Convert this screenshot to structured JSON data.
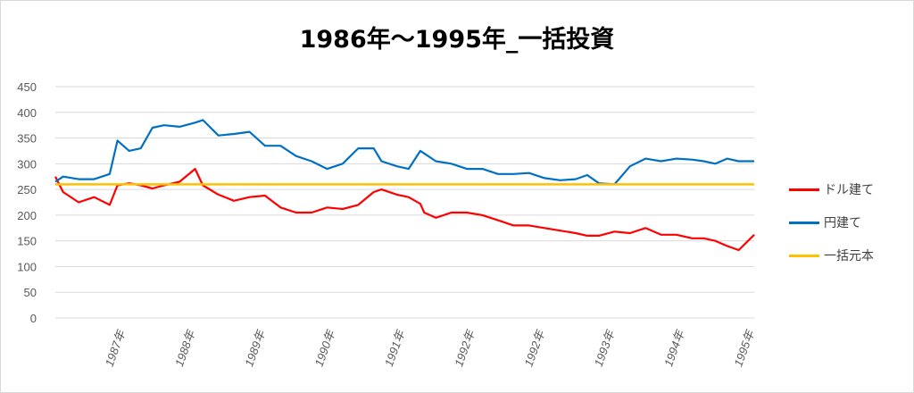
{
  "chart_data": {
    "type": "line",
    "title": "1986年～1995年_一括投資",
    "xlabel": "",
    "ylabel": "",
    "ylim": [
      0,
      450
    ],
    "yticks": [
      0,
      50,
      100,
      150,
      200,
      250,
      300,
      350,
      400,
      450
    ],
    "grid": true,
    "legend_position": "right",
    "x_tick_labels": [
      "1987年",
      "1988年",
      "1989年",
      "1990年",
      "1991年",
      "1992年",
      "1992年",
      "1993年",
      "1994年",
      "1995年"
    ],
    "x": [
      1986.0,
      1986.1,
      1986.3,
      1986.5,
      1986.7,
      1986.8,
      1986.95,
      1987.1,
      1987.25,
      1987.4,
      1987.6,
      1987.8,
      1987.9,
      1988.1,
      1988.3,
      1988.5,
      1988.7,
      1988.9,
      1989.1,
      1989.3,
      1989.5,
      1989.7,
      1989.9,
      1990.1,
      1990.2,
      1990.4,
      1990.55,
      1990.7,
      1990.75,
      1990.9,
      1991.1,
      1991.3,
      1991.5,
      1991.7,
      1991.9,
      1992.1,
      1992.3,
      1992.5,
      1992.7,
      1992.85,
      1993.0,
      1993.2,
      1993.4,
      1993.6,
      1993.8,
      1994.0,
      1994.2,
      1994.35,
      1994.5,
      1994.65,
      1994.8,
      1995.0
    ],
    "series": [
      {
        "name": "ドル建て",
        "color": "#ff0000",
        "values": [
          275,
          245,
          225,
          235,
          220,
          258,
          262,
          258,
          252,
          258,
          265,
          290,
          258,
          240,
          228,
          235,
          238,
          215,
          205,
          205,
          215,
          212,
          220,
          245,
          250,
          240,
          235,
          222,
          205,
          195,
          205,
          205,
          200,
          190,
          180,
          180,
          175,
          170,
          165,
          160,
          160,
          168,
          165,
          175,
          162,
          162,
          155,
          155,
          150,
          140,
          132,
          162
        ]
      },
      {
        "name": "円建て",
        "color": "#0070c0",
        "values": [
          265,
          275,
          270,
          270,
          280,
          345,
          325,
          330,
          370,
          375,
          372,
          380,
          385,
          355,
          358,
          362,
          335,
          335,
          315,
          305,
          290,
          300,
          330,
          330,
          305,
          295,
          290,
          325,
          320,
          305,
          300,
          290,
          290,
          280,
          280,
          282,
          272,
          268,
          270,
          278,
          262,
          260,
          295,
          310,
          305,
          310,
          308,
          305,
          300,
          310,
          305,
          305
        ]
      },
      {
        "name": "一括元本",
        "color": "#ffc000",
        "values": [
          260,
          260,
          260,
          260,
          260,
          260,
          260,
          260,
          260,
          260,
          260,
          260,
          260,
          260,
          260,
          260,
          260,
          260,
          260,
          260,
          260,
          260,
          260,
          260,
          260,
          260,
          260,
          260,
          260,
          260,
          260,
          260,
          260,
          260,
          260,
          260,
          260,
          260,
          260,
          260,
          260,
          260,
          260,
          260,
          260,
          260,
          260,
          260,
          260,
          260,
          260,
          260
        ]
      }
    ]
  }
}
